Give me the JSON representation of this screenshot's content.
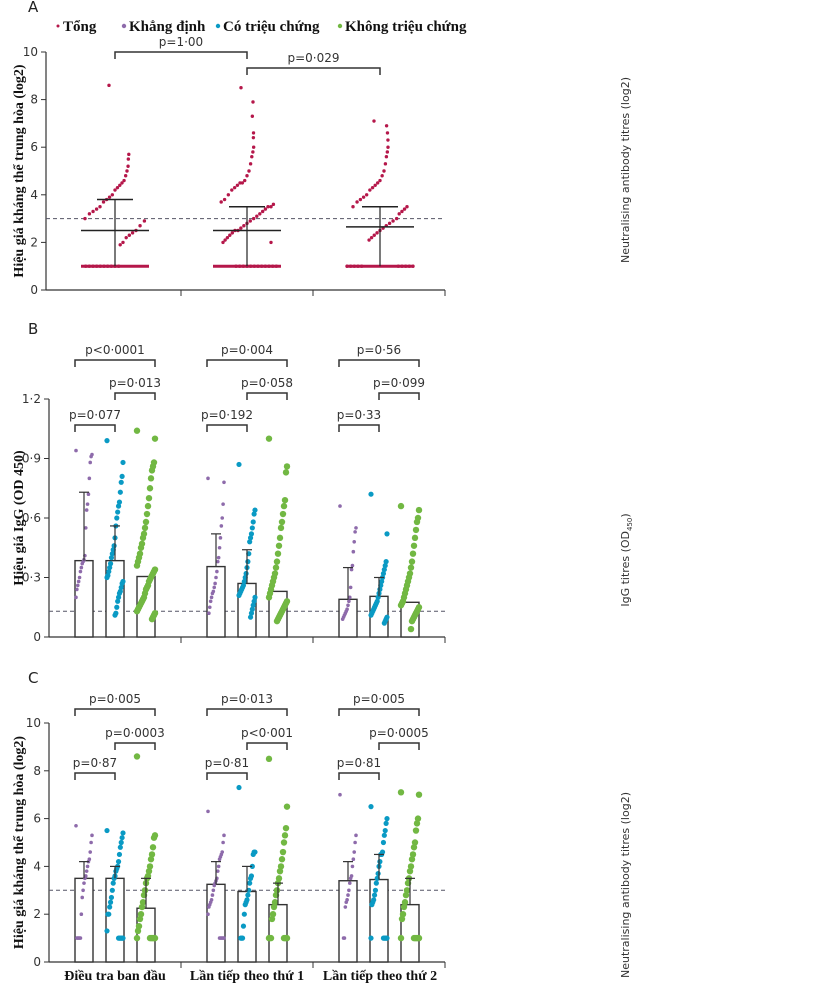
{
  "legend": {
    "items": [
      {
        "label": "Tổng",
        "color": "#b5174a"
      },
      {
        "label": "Khẳng định",
        "color": "#8e6bab"
      },
      {
        "label": "Có triệu chứng",
        "color": "#0a9ac4"
      },
      {
        "label": "Không triệu chứng",
        "color": "#72b843"
      }
    ]
  },
  "categories": [
    "Điều tra ban đầu",
    "Lần tiếp theo thứ 1",
    "Lần tiếp theo thứ 2"
  ],
  "chart_data": [
    {
      "panel": "A",
      "type": "scatter",
      "ylabel": "Hiệu giá kháng thể trung hòa (log2)",
      "right_label": "Neutralising antibody titres (log2)",
      "ylim": [
        0,
        10
      ],
      "yticks": [
        "0",
        "2",
        "4",
        "6",
        "8",
        "10"
      ],
      "threshold": 3,
      "groups": [
        {
          "series": "Tổng",
          "median": 2.5,
          "upper": 3.8,
          "lower": 1,
          "points": [
            8.6,
            5.7,
            5.5,
            5.2,
            5,
            4.8,
            4.6,
            4.5,
            4.4,
            4.3,
            4.2,
            4,
            3.9,
            3.8,
            3.7,
            3.5,
            3.4,
            3.3,
            3.2,
            3,
            2.9,
            2.7,
            2.5,
            2.4,
            2.3,
            2.2,
            2,
            1.9,
            1,
            1,
            1,
            1,
            1,
            1,
            1,
            1,
            1,
            1
          ]
        },
        {
          "series": "Tổng",
          "median": 2.5,
          "upper": 3.5,
          "lower": 1,
          "points": [
            8.5,
            7.9,
            7.3,
            6.6,
            6.4,
            6,
            5.8,
            5.6,
            5.3,
            5,
            4.8,
            4.6,
            4.5,
            4.5,
            4.4,
            4.3,
            4.2,
            4,
            3.8,
            3.7,
            3.6,
            3.5,
            3.5,
            3.4,
            3.3,
            3.2,
            3.1,
            3,
            2.9,
            2.8,
            2.7,
            2.6,
            2.5,
            2.5,
            2.4,
            2.3,
            2.2,
            2.1,
            2,
            2,
            1,
            1,
            1,
            1,
            1,
            1,
            1,
            1,
            1,
            1,
            1,
            1
          ]
        },
        {
          "series": "Tổng",
          "median": 2.65,
          "upper": 3.5,
          "lower": 1,
          "points": [
            7.1,
            6.9,
            6.6,
            6.3,
            6,
            5.8,
            5.6,
            5.3,
            5,
            4.8,
            4.6,
            4.5,
            4.4,
            4.3,
            4.2,
            4,
            3.9,
            3.8,
            3.7,
            3.5,
            3.5,
            3.4,
            3.3,
            3.2,
            3,
            2.9,
            2.8,
            2.7,
            2.6,
            2.5,
            2.4,
            2.3,
            2.2,
            2.1,
            1,
            1,
            1,
            1,
            1,
            1,
            1,
            1,
            1,
            1
          ]
        }
      ],
      "comparisons": [
        {
          "from": 0,
          "to": 1,
          "label": "p=1·00"
        },
        {
          "from": 1,
          "to": 2,
          "label": "p=0·029"
        }
      ]
    },
    {
      "panel": "B",
      "type": "bar",
      "ylabel": "Hiệu giá IgG (OD 450)",
      "right_label": "IgG titres (OD",
      "right_label_sub": "450",
      "right_label_end": ")",
      "ylim": [
        0,
        1.2
      ],
      "yticks": [
        "0",
        "0·3",
        "0·6",
        "0·9",
        "1·2"
      ],
      "threshold": 0.13,
      "groups": [
        {
          "bars": [
            {
              "series": "Khẳng định",
              "value": 0.385,
              "upper": 0.73,
              "points": [
                0.94,
                0.92,
                0.91,
                0.88,
                0.8,
                0.72,
                0.67,
                0.64,
                0.55,
                0.41,
                0.39,
                0.38,
                0.37,
                0.35,
                0.33,
                0.3,
                0.28,
                0.26,
                0.24,
                0.2
              ]
            },
            {
              "series": "Có triệu chứng",
              "value": 0.385,
              "upper": 0.56,
              "points": [
                0.99,
                0.88,
                0.81,
                0.78,
                0.73,
                0.68,
                0.66,
                0.63,
                0.6,
                0.56,
                0.5,
                0.46,
                0.44,
                0.42,
                0.4,
                0.37,
                0.35,
                0.33,
                0.31,
                0.3,
                0.28,
                0.27,
                0.25,
                0.23,
                0.22,
                0.2,
                0.18,
                0.15,
                0.12,
                0.11
              ]
            },
            {
              "series": "Không triệu chứng",
              "value": 0.305,
              "upper": null,
              "points": [
                1.04,
                1.0,
                0.88,
                0.86,
                0.84,
                0.8,
                0.75,
                0.7,
                0.66,
                0.62,
                0.58,
                0.55,
                0.52,
                0.5,
                0.47,
                0.45,
                0.42,
                0.4,
                0.38,
                0.36,
                0.34,
                0.33,
                0.32,
                0.31,
                0.3,
                0.29,
                0.28,
                0.26,
                0.25,
                0.24,
                0.22,
                0.2,
                0.19,
                0.18,
                0.17,
                0.16,
                0.15,
                0.14,
                0.13,
                0.12,
                0.11,
                0.1,
                0.09
              ]
            }
          ],
          "comparisons": [
            {
              "from": 0,
              "to": 2,
              "label": "p<0·0001"
            },
            {
              "from": 1,
              "to": 2,
              "label": "p=0·013"
            },
            {
              "from": 0,
              "to": 1,
              "label": "p=0·077"
            }
          ]
        },
        {
          "bars": [
            {
              "series": "Khẳng định",
              "value": 0.355,
              "upper": 0.52,
              "points": [
                0.8,
                0.78,
                0.67,
                0.6,
                0.56,
                0.5,
                0.45,
                0.4,
                0.38,
                0.33,
                0.3,
                0.27,
                0.25,
                0.23,
                0.22,
                0.2,
                0.18,
                0.15,
                0.12
              ]
            },
            {
              "series": "Có triệu chứng",
              "value": 0.27,
              "upper": 0.44,
              "points": [
                0.87,
                0.64,
                0.62,
                0.58,
                0.55,
                0.52,
                0.5,
                0.48,
                0.42,
                0.38,
                0.35,
                0.32,
                0.3,
                0.28,
                0.26,
                0.25,
                0.24,
                0.23,
                0.22,
                0.21,
                0.2,
                0.18,
                0.16,
                0.14,
                0.12,
                0.1
              ]
            },
            {
              "series": "Không triệu chứng",
              "value": 0.23,
              "upper": null,
              "points": [
                1.0,
                0.86,
                0.83,
                0.69,
                0.66,
                0.62,
                0.58,
                0.55,
                0.5,
                0.46,
                0.42,
                0.38,
                0.35,
                0.32,
                0.3,
                0.28,
                0.26,
                0.24,
                0.22,
                0.2,
                0.18,
                0.17,
                0.16,
                0.15,
                0.14,
                0.13,
                0.12,
                0.11,
                0.1,
                0.09,
                0.08
              ]
            }
          ],
          "comparisons": [
            {
              "from": 0,
              "to": 2,
              "label": "p=0·004"
            },
            {
              "from": 1,
              "to": 2,
              "label": "p=0·058"
            },
            {
              "from": 0,
              "to": 1,
              "label": "p=0·192"
            }
          ]
        },
        {
          "bars": [
            {
              "series": "Khẳng định",
              "value": 0.19,
              "upper": 0.35,
              "points": [
                0.66,
                0.55,
                0.53,
                0.48,
                0.43,
                0.36,
                0.34,
                0.25,
                0.2,
                0.18,
                0.16,
                0.14,
                0.13,
                0.12,
                0.11,
                0.1,
                0.09
              ]
            },
            {
              "series": "Có triệu chứng",
              "value": 0.205,
              "upper": 0.3,
              "points": [
                0.72,
                0.52,
                0.38,
                0.36,
                0.34,
                0.32,
                0.3,
                0.28,
                0.26,
                0.24,
                0.22,
                0.2,
                0.18,
                0.17,
                0.16,
                0.15,
                0.14,
                0.13,
                0.12,
                0.11,
                0.1,
                0.09,
                0.08,
                0.07
              ]
            },
            {
              "series": "Không triệu chứng",
              "value": 0.175,
              "upper": null,
              "points": [
                0.66,
                0.64,
                0.6,
                0.58,
                0.54,
                0.5,
                0.46,
                0.42,
                0.38,
                0.35,
                0.32,
                0.3,
                0.28,
                0.26,
                0.24,
                0.22,
                0.2,
                0.18,
                0.17,
                0.16,
                0.15,
                0.14,
                0.13,
                0.12,
                0.11,
                0.1,
                0.09,
                0.08,
                0.04
              ]
            }
          ],
          "comparisons": [
            {
              "from": 0,
              "to": 2,
              "label": "p=0·56"
            },
            {
              "from": 1,
              "to": 2,
              "label": "p=0·099"
            },
            {
              "from": 0,
              "to": 1,
              "label": "p=0·33"
            }
          ]
        }
      ]
    },
    {
      "panel": "C",
      "type": "bar",
      "ylabel": "Hiệu giá kháng thể trung hòa (log2)",
      "right_label": "Neutralising antibody titres (log2)",
      "ylim": [
        0,
        10
      ],
      "yticks": [
        "0",
        "2",
        "4",
        "6",
        "8",
        "10"
      ],
      "threshold": 3,
      "groups": [
        {
          "bars": [
            {
              "series": "Khẳng định",
              "value": 3.5,
              "upper": 4.2,
              "points": [
                5.7,
                5.3,
                5,
                4.6,
                4.3,
                4.2,
                4,
                3.8,
                3.6,
                3.5,
                3.3,
                3,
                2.7,
                2,
                1,
                1,
                1,
                1,
                1
              ]
            },
            {
              "series": "Có triệu chứng",
              "value": 3.5,
              "upper": 4.0,
              "points": [
                5.5,
                5.4,
                5.2,
                5,
                4.8,
                4.5,
                4.2,
                4,
                3.9,
                3.8,
                3.6,
                3.5,
                3.3,
                3,
                2.7,
                2.5,
                2.3,
                2,
                2,
                1.3,
                1,
                1,
                1,
                1,
                1,
                1
              ]
            },
            {
              "series": "Không triệu chứng",
              "value": 2.25,
              "upper": 3.5,
              "points": [
                8.6,
                5.3,
                5.2,
                4.8,
                4.5,
                4.3,
                4,
                3.8,
                3.6,
                3.5,
                3.3,
                3,
                2.8,
                2.5,
                2.3,
                2,
                1.8,
                1.5,
                1.3,
                1,
                1,
                1,
                1,
                1,
                1,
                1
              ]
            }
          ],
          "comparisons": [
            {
              "from": 0,
              "to": 2,
              "label": "p=0·005"
            },
            {
              "from": 1,
              "to": 2,
              "label": "p=0·0003"
            },
            {
              "from": 0,
              "to": 1,
              "label": "p=0·87"
            }
          ]
        },
        {
          "bars": [
            {
              "series": "Khẳng định",
              "value": 3.25,
              "upper": 4.2,
              "points": [
                6.3,
                5.3,
                5,
                4.6,
                4.5,
                4.4,
                4.3,
                4,
                3.8,
                3.5,
                3.4,
                3.3,
                3.2,
                3,
                2.8,
                2.6,
                2.5,
                2.4,
                2.3,
                2,
                1,
                1,
                1,
                1,
                1,
                1
              ]
            },
            {
              "series": "Có triệu chứng",
              "value": 2.95,
              "upper": 4.0,
              "points": [
                7.3,
                4.6,
                4.6,
                4.5,
                4,
                3.6,
                3.5,
                3.3,
                3,
                2.8,
                2.6,
                2.5,
                2.4,
                2,
                1.5,
                1,
                1,
                1
              ]
            },
            {
              "series": "Không triệu chứng",
              "value": 2.4,
              "upper": 3.3,
              "points": [
                8.5,
                6.5,
                5.6,
                5.3,
                5,
                4.6,
                4.3,
                4,
                3.8,
                3.5,
                3.3,
                3,
                2.8,
                2.5,
                2.3,
                2,
                1.8,
                1,
                1,
                1,
                1,
                1,
                1,
                1
              ]
            }
          ],
          "comparisons": [
            {
              "from": 0,
              "to": 2,
              "label": "p=0·013"
            },
            {
              "from": 1,
              "to": 2,
              "label": "p<0·001"
            },
            {
              "from": 0,
              "to": 1,
              "label": "p=0·81"
            }
          ]
        },
        {
          "bars": [
            {
              "series": "Khẳng định",
              "value": 3.4,
              "upper": 4.2,
              "points": [
                7,
                5.3,
                5,
                4.6,
                4.3,
                4,
                3.6,
                3.5,
                3.3,
                3,
                2.8,
                2.6,
                2.5,
                2.3,
                1,
                1
              ]
            },
            {
              "series": "Có triệu chứng",
              "value": 3.45,
              "upper": 4.5,
              "points": [
                6.5,
                6,
                5.8,
                5.5,
                5.3,
                5,
                4.6,
                4.5,
                4.5,
                4.2,
                4,
                3.7,
                3.5,
                3.3,
                3,
                2.8,
                2.6,
                2.5,
                2.4,
                1,
                1,
                1,
                1,
                1,
                1
              ]
            },
            {
              "series": "Không triệu chứng",
              "value": 2.4,
              "upper": 3.5,
              "points": [
                7.1,
                7,
                6,
                5.8,
                5.5,
                5,
                4.8,
                4.5,
                4.3,
                4,
                3.8,
                3.5,
                3.3,
                3,
                2.8,
                2.5,
                2.3,
                2,
                1.8,
                1,
                1,
                1,
                1,
                1,
                1,
                1
              ]
            }
          ],
          "comparisons": [
            {
              "from": 0,
              "to": 2,
              "label": "p=0·005"
            },
            {
              "from": 1,
              "to": 2,
              "label": "p=0·0005"
            },
            {
              "from": 0,
              "to": 1,
              "label": "p=0·81"
            }
          ]
        }
      ]
    }
  ]
}
